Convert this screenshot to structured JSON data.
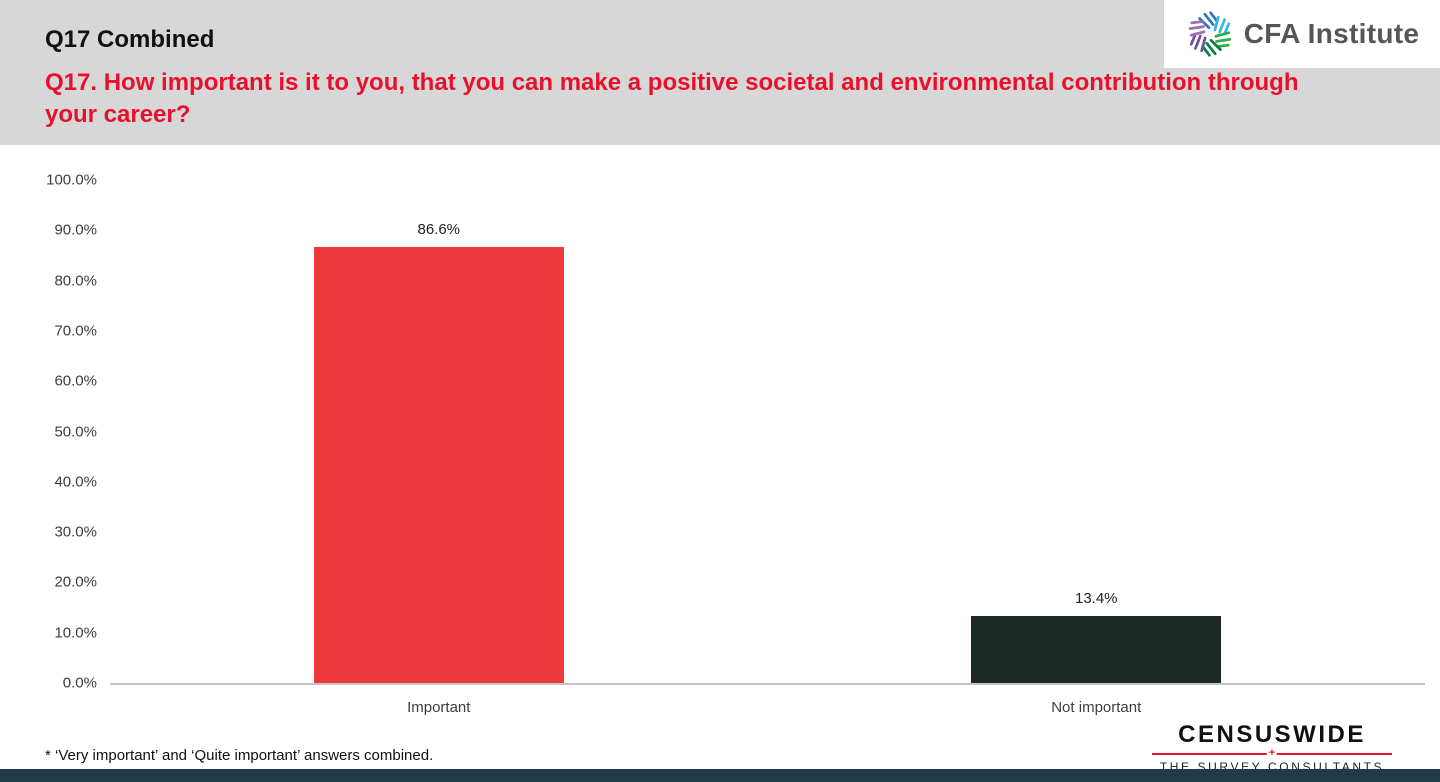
{
  "header": {
    "title": "Q17 Combined",
    "question": "Q17. How important is it to you, that you can make a positive societal and environmental contribution through your career?"
  },
  "branding": {
    "cfa_text": "CFA Institute"
  },
  "chart_data": {
    "type": "bar",
    "title": "",
    "categories": [
      "Important",
      "Not important"
    ],
    "values": [
      86.6,
      13.4
    ],
    "value_labels": [
      "86.6%",
      "13.4%"
    ],
    "ylim": [
      0,
      100
    ],
    "yticks": [
      {
        "value": 0,
        "label": "0.0%"
      },
      {
        "value": 10,
        "label": "10.0%"
      },
      {
        "value": 20,
        "label": "20.0%"
      },
      {
        "value": 30,
        "label": "30.0%"
      },
      {
        "value": 40,
        "label": "40.0%"
      },
      {
        "value": 50,
        "label": "50.0%"
      },
      {
        "value": 60,
        "label": "60.0%"
      },
      {
        "value": 70,
        "label": "70.0%"
      },
      {
        "value": 80,
        "label": "80.0%"
      },
      {
        "value": 90,
        "label": "90.0%"
      },
      {
        "value": 100,
        "label": "100.0%"
      }
    ],
    "bar_colors": [
      "#ee3a3c",
      "#1b2a24"
    ],
    "grid": false,
    "legend": false
  },
  "footnote": "* ‘Very important’ and ‘Quite important’ answers combined.",
  "censuswide": {
    "name": "CENSUSWIDE",
    "plus": "+",
    "tagline": "THE SURVEY CONSULTANTS"
  },
  "colors": {
    "header_bg": "#d7d7d7",
    "question_red": "#e8112d",
    "censuswide_red": "#e8112d",
    "bottom_bar": "#1f3b47",
    "axis_line": "#c4c4c4"
  }
}
